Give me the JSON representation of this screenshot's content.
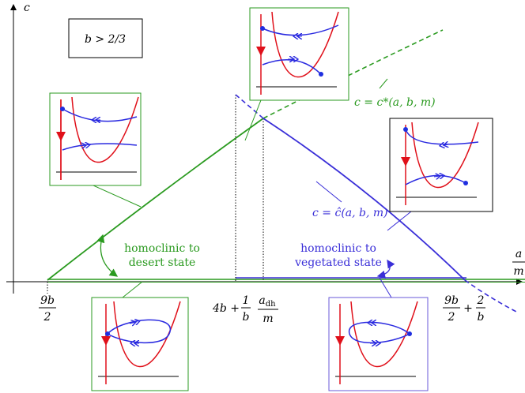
{
  "axes": {
    "y_label": "c",
    "x_label": {
      "num": "a",
      "den": "m"
    }
  },
  "condition": "b > 2/3",
  "curves": [
    {
      "label": "c = c*(a, b, m)"
    },
    {
      "label": "c = ĉ(a, b, m)"
    }
  ],
  "regions": [
    {
      "label_lines": [
        "homoclinic to",
        "desert state"
      ]
    },
    {
      "label_lines": [
        "homoclinic to",
        "vegetated state"
      ]
    }
  ],
  "x_ticks": [
    {
      "num": "9b",
      "den": "2"
    },
    {
      "prefix": "4b +",
      "num": "1",
      "den": "b"
    },
    {
      "num": "a",
      "sub": "dh",
      "den": "m"
    },
    {
      "num": "9b",
      "den": "2",
      "joiner": "+",
      "num2": "2",
      "den2": "b"
    }
  ]
}
